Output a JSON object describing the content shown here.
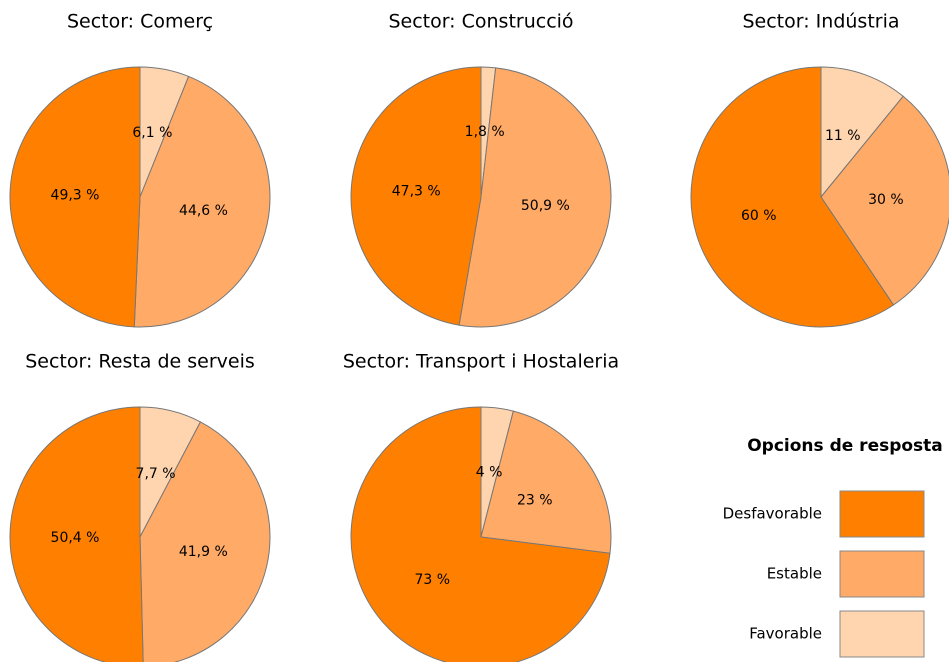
{
  "chart_data": [
    {
      "type": "pie",
      "title": "Sector: Comerç",
      "categories": [
        "Desfavorable",
        "Estable",
        "Favorable"
      ],
      "values": [
        49.3,
        44.6,
        6.1
      ],
      "value_labels": [
        "49,3 %",
        "44,6 %",
        "6,1 %"
      ],
      "colors": [
        "#ff8000",
        "#ffaa66",
        "#ffd5b0"
      ]
    },
    {
      "type": "pie",
      "title": "Sector: Construcció",
      "categories": [
        "Desfavorable",
        "Estable",
        "Favorable"
      ],
      "values": [
        47.3,
        50.9,
        1.8
      ],
      "value_labels": [
        "47,3 %",
        "50,9 %",
        "1,8 %"
      ],
      "colors": [
        "#ff8000",
        "#ffaa66",
        "#ffd5b0"
      ]
    },
    {
      "type": "pie",
      "title": "Sector: Indústria",
      "categories": [
        "Desfavorable",
        "Estable",
        "Favorable"
      ],
      "values": [
        60,
        30,
        11
      ],
      "value_labels": [
        "60 %",
        "30 %",
        "11 %"
      ],
      "colors": [
        "#ff8000",
        "#ffaa66",
        "#ffd5b0"
      ]
    },
    {
      "type": "pie",
      "title": "Sector: Resta de serveis",
      "categories": [
        "Desfavorable",
        "Estable",
        "Favorable"
      ],
      "values": [
        50.4,
        41.9,
        7.7
      ],
      "value_labels": [
        "50,4 %",
        "41,9 %",
        "7,7 %"
      ],
      "colors": [
        "#ff8000",
        "#ffaa66",
        "#ffd5b0"
      ]
    },
    {
      "type": "pie",
      "title": "Sector: Transport i Hostaleria",
      "categories": [
        "Desfavorable",
        "Estable",
        "Favorable"
      ],
      "values": [
        73,
        23,
        4
      ],
      "value_labels": [
        "73 %",
        "23 %",
        "4 %"
      ],
      "colors": [
        "#ff8000",
        "#ffaa66",
        "#ffd5b0"
      ]
    }
  ],
  "legend_title": "Opcions de resposta"
}
